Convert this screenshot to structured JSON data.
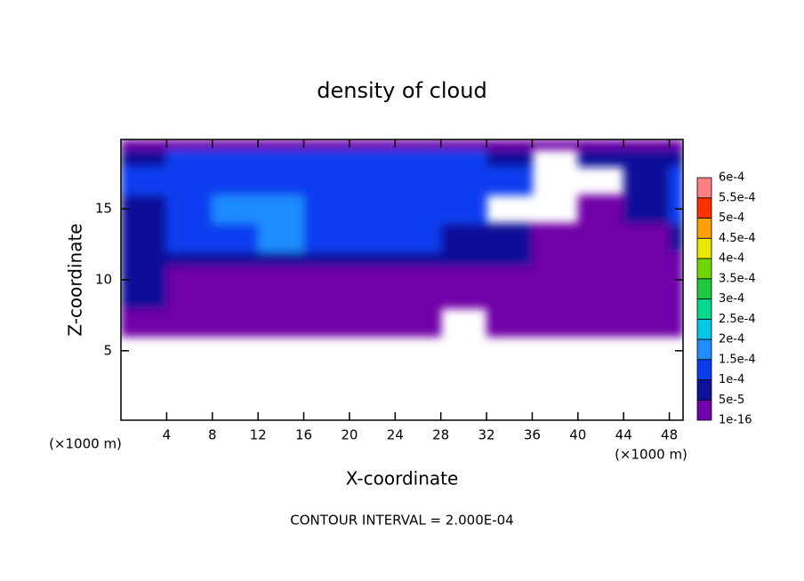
{
  "chart_data": {
    "type": "contour",
    "title": "density of cloud",
    "x_label": "X-coordinate",
    "y_label": "Z-coordinate",
    "x_unit": "(×1000 m)",
    "y_unit": "(×1000 m)",
    "footer": "CONTOUR INTERVAL = 2.000E-04",
    "xlim": [
      0,
      49.2
    ],
    "ylim": [
      0.1,
      19.9
    ],
    "xticks": [
      4,
      8,
      12,
      16,
      20,
      24,
      28,
      32,
      36,
      40,
      44,
      48
    ],
    "yticks": [
      5,
      10,
      15
    ],
    "x_edges": [
      0,
      4,
      8,
      12,
      16,
      20,
      24,
      28,
      32,
      36,
      40,
      44,
      48,
      49.2
    ],
    "y_edges": [
      0.1,
      6,
      8,
      10,
      11,
      12,
      14,
      16,
      18,
      19.2,
      19.9
    ],
    "z": [
      [
        null,
        null,
        null,
        null,
        null,
        null,
        null,
        null,
        null,
        null,
        null,
        null,
        null
      ],
      [
        3e-05,
        2e-05,
        2e-05,
        2e-05,
        2e-05,
        2e-05,
        2e-05,
        null,
        2e-05,
        2e-05,
        2e-05,
        3e-05,
        2e-05
      ],
      [
        7e-05,
        2e-05,
        2e-05,
        2e-05,
        2e-05,
        2e-05,
        2e-05,
        2e-05,
        2e-05,
        2e-05,
        2e-05,
        2e-05,
        2e-05
      ],
      [
        8e-05,
        2e-05,
        3e-05,
        3e-05,
        3e-05,
        3e-05,
        3e-05,
        3e-05,
        3e-05,
        4e-05,
        2e-05,
        2e-05,
        2e-05
      ],
      [
        7e-05,
        8e-05,
        9e-05,
        9e-05,
        9e-05,
        9e-05,
        9e-05,
        8e-05,
        7e-05,
        4e-05,
        2e-05,
        2e-05,
        3e-05
      ],
      [
        8e-05,
        0.00012,
        0.00013,
        0.00016,
        0.00013,
        0.00012,
        0.00011,
        7e-05,
        6e-05,
        3e-05,
        2e-05,
        2e-05,
        7e-05
      ],
      [
        9e-05,
        0.00013,
        0.00016,
        0.00017,
        0.00013,
        0.00012,
        0.00012,
        0.00011,
        null,
        null,
        3e-05,
        6e-05,
        0.00011
      ],
      [
        0.00011,
        0.00012,
        0.00013,
        0.00014,
        0.00012,
        0.00012,
        0.00012,
        0.00012,
        0.00011,
        null,
        null,
        6e-05,
        0.00011
      ],
      [
        7e-05,
        0.00011,
        0.00011,
        0.00011,
        0.00011,
        0.00011,
        0.00011,
        0.00011,
        9e-05,
        null,
        6e-05,
        6e-05,
        7e-05
      ],
      [
        3e-05,
        3e-05,
        3e-05,
        3e-05,
        3e-05,
        3e-05,
        3e-05,
        3e-05,
        3e-05,
        3e-05,
        3e-05,
        3e-05,
        3e-05
      ]
    ],
    "colorbar": {
      "levels": [
        {
          "value": 1e-16,
          "label": "1e-16"
        },
        {
          "value": 5e-05,
          "label": "5e-5"
        },
        {
          "value": 0.0001,
          "label": "1e-4"
        },
        {
          "value": 0.00015,
          "label": "1.5e-4"
        },
        {
          "value": 0.0002,
          "label": "2e-4"
        },
        {
          "value": 0.00025,
          "label": "2.5e-4"
        },
        {
          "value": 0.0003,
          "label": "3e-4"
        },
        {
          "value": 0.00035,
          "label": "3.5e-4"
        },
        {
          "value": 0.0004,
          "label": "4e-4"
        },
        {
          "value": 0.00045,
          "label": "4.5e-4"
        },
        {
          "value": 0.0005,
          "label": "5e-4"
        },
        {
          "value": 0.00055,
          "label": "5.5e-4"
        },
        {
          "value": 0.0006,
          "label": "6e-4"
        }
      ],
      "colors": [
        "#7000a8",
        "#10109a",
        "#0a3cf0",
        "#1e8cff",
        "#00c8e6",
        "#00d890",
        "#20c840",
        "#70d800",
        "#e8e800",
        "#ffa000",
        "#ff3000",
        "#ff8080"
      ]
    }
  }
}
